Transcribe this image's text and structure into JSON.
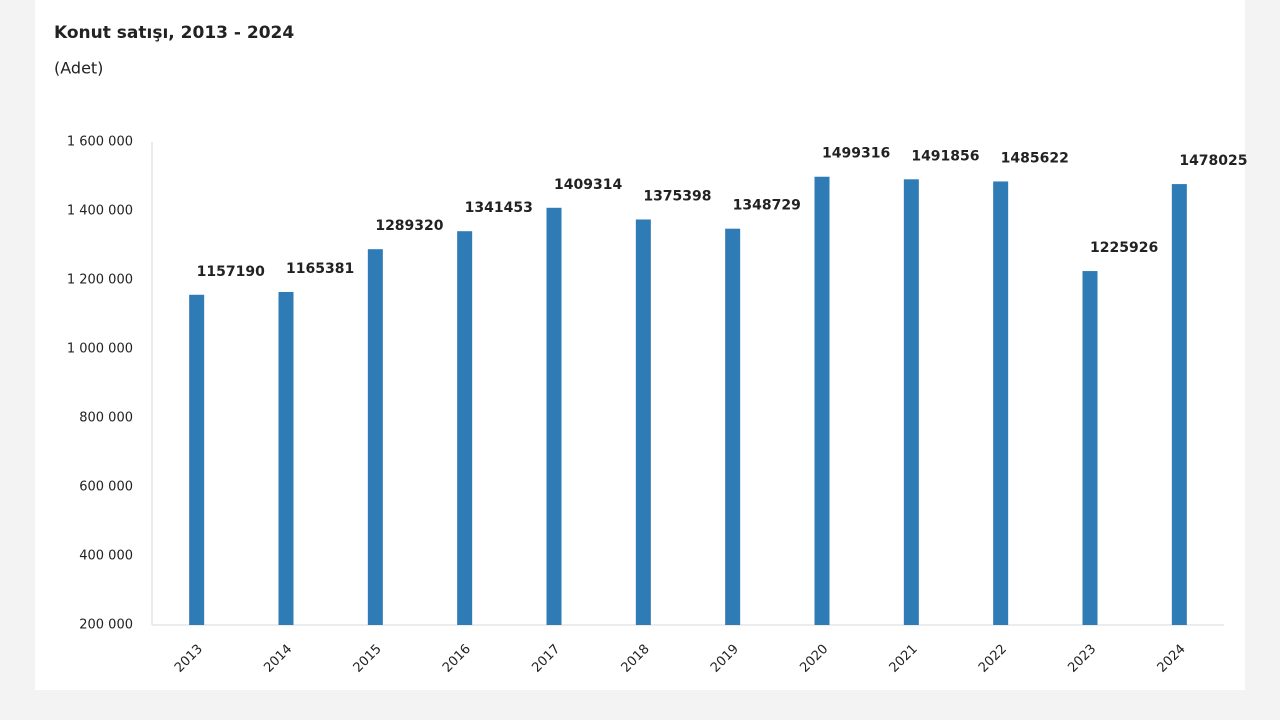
{
  "chart_data": {
    "type": "bar",
    "title": "Konut satışı, 2013 - 2024",
    "subtitle": "(Adet)",
    "categories": [
      "2013",
      "2014",
      "2015",
      "2016",
      "2017",
      "2018",
      "2019",
      "2020",
      "2021",
      "2022",
      "2023",
      "2024"
    ],
    "values": [
      1157190,
      1165381,
      1289320,
      1341453,
      1409314,
      1375398,
      1348729,
      1499316,
      1491856,
      1485622,
      1225926,
      1478025
    ],
    "color": "#2e7bb6",
    "ylim": [
      200000,
      1600000
    ],
    "yticks": [
      {
        "value": 200000,
        "label": "200 000"
      },
      {
        "value": 400000,
        "label": "400 000"
      },
      {
        "value": 600000,
        "label": "600 000"
      },
      {
        "value": 800000,
        "label": "800 000"
      },
      {
        "value": 1000000,
        "label": "1 000 000"
      },
      {
        "value": 1200000,
        "label": "1 200 000"
      },
      {
        "value": 1400000,
        "label": "1 400 000"
      },
      {
        "value": 1600000,
        "label": "1 600 000"
      }
    ],
    "grid": false
  }
}
